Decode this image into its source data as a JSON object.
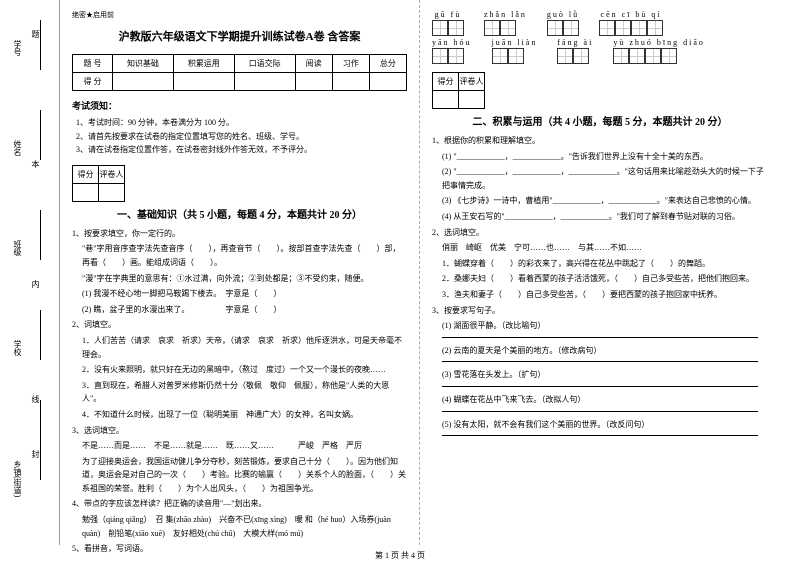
{
  "gutter": {
    "labels": [
      "学号",
      "姓名",
      "班级",
      "学校",
      "乡镇(街道)"
    ],
    "marks": [
      "题",
      "本",
      "内",
      "线",
      "封"
    ]
  },
  "header": {
    "secret": "绝密★启用前",
    "title": "沪教版六年级语文下学期提升训练试卷A卷 含答案"
  },
  "infoTable": {
    "row1": [
      "题 号",
      "知识基础",
      "积累运用",
      "口语交际",
      "阅读",
      "习作",
      "总分"
    ],
    "row2": [
      "得 分",
      "",
      "",
      "",
      "",
      "",
      ""
    ]
  },
  "rules": {
    "title": "考试须知：",
    "items": [
      "1、考试时间：90 分钟，本卷满分为 100 分。",
      "2、请首先按要求在试卷的指定位置填写您的姓名、班级、学号。",
      "3、请在试卷指定位置作答，在试卷密封线外作答无效，不予评分。"
    ]
  },
  "scoreBox": {
    "c1": "得分",
    "c2": "评卷人"
  },
  "section1": {
    "title": "一、基础知识（共 5 小题，每题 4 分，本题共计 20 分）",
    "q1": "1、按要求填空，你一定行的。",
    "q1a": "\"巷\"字用音序查字法先查音序（　　），再查音节（　　）。按部首查字法先查（　　）部，再看（　　）画。能组成词语（　　）。",
    "q1b": "\"漫\"字在字典里的意思有：①水过满，向外流；②到处都是；③不受约束，随便。",
    "q1c": "(1) 我漫不经心地一脚把马鞍踢下楼去。　字意是（　　）",
    "q1d": "(2) 瞧，盆子里的水漫出来了。　　　　　字意是（　　）",
    "q2": "2、词填空。",
    "q2a": "1．人们苦苦（请求　哀求　祈求）天帝，（请求　哀求　祈求）他斥逐洪水，可是天帝毫不理会。",
    "q2b": "2．没有火来照明，就只好在无边的黑暗中，（熬过　度过）一个又一个漫长的夜晚……",
    "q2c": "3．直到现在，希腊人对普罗米修斯仍然十分（敬佩　敬仰　佩服），称他是\"人类的大恩人\"。",
    "q2d": "4．不知道什么时候，出现了一位（聪明美丽　神通广大）的女神，名叫女娲。",
    "q3": "3、选词填空。",
    "q3a": "不是……而是……　不是……就是……　既……又……　　　严峻　严格　严厉",
    "q3b": "为了迎接奥运会，我国运动健儿争分夺秒，刻苦锻炼，要求自己十分（　　）。因为他们知道，奥运会是对自己的一次（　　）考验。比赛的输赢（　　）关系个人的脸面，（　　）关系祖国的荣誉。胜利（　　）为个人出风头，（　　）为祖国争光。",
    "q4": "4、带点的字应该怎样读？把正确的读音用\"—\"划出来。",
    "q4a": "勉强（qiáng qiǎng）　召 集(zhāo zhào)　兴奋不已(xīng xìng)　暖 和（hé huo）入场券(juàn quàn)　削铅笔(xiāo xuē)　友好相处(chú chǔ)　大模大样(mó mú)",
    "q5": "5、看拼音，写词语。"
  },
  "pinyin": {
    "row1": [
      {
        "py": "gū fù",
        "n": 2
      },
      {
        "py": "zhǎn lǎn",
        "n": 2
      },
      {
        "py": "guò lǜ",
        "n": 2
      },
      {
        "py": "cēn cī bù qí",
        "n": 4
      }
    ],
    "row2": [
      {
        "py": "yān hóu",
        "n": 2
      },
      {
        "py": "juān liàn",
        "n": 2
      },
      {
        "py": "fáng ài",
        "n": 2
      },
      {
        "py": "yù zhuó bīng diāo",
        "n": 4
      }
    ]
  },
  "section2": {
    "title": "二、积累与运用（共 4 小题，每题 5 分，本题共计 20 分）",
    "q1": "1、根据你的积累和理解填空。",
    "q1a": "(1) \"____________，____________。\"告诉我们世界上没有十全十美的东西。",
    "q1b": "(2) \"____________，____________，____________。\"这句话用来比喻趁劲头大的时候一下子把事情完成。",
    "q1c": "(3) 《七步诗》一诗中，曹植用\"____________，____________。\"来表达自己悲愤的心情。",
    "q1d": "(4) 从王安石写的\"____________，____________。\"我们可了解到春节贴对联的习俗。",
    "q2": "2、选词填空。",
    "q2a": "俏丽　崎岖　优美　宁可……也……　与其……不如……",
    "q2b": "1．蝴蝶穿着（　　）的彩衣来了，高兴得在花丛中跳起了（　　）的舞蹈。",
    "q2c": "2．桑娜夫妇（　　）看着西蒙的孩子活活饿死，（　　）自己多受些苦，把他们抱回来。",
    "q2d": "3．渔夫和妻子（　　）自己多受些苦，（　　）要把西蒙的孩子抱回家中抚养。",
    "q3": "3、按要求写句子。",
    "q3a": "(1) 湖面很平静。（改比喻句）",
    "q3b": "(2) 云南的夏天是个美丽的地方。（修改病句）",
    "q3c": "(3) 雪花落在头发上。（扩句）",
    "q3d": "(4) 蝴蝶在花丛中飞来飞去。（改拟人句）",
    "q3e": "(5) 没有太阳，就不会有我们这个美丽的世界。（改反问句）"
  },
  "footer": "第 1 页 共 4 页"
}
